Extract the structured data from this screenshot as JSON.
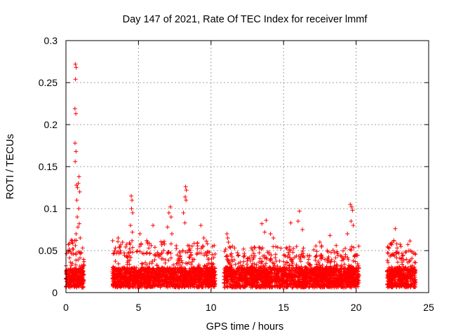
{
  "chart_data": {
    "type": "scatter",
    "title": "Day 147 of 2021, Rate Of TEC Index for receiver lmmf",
    "xlabel": "GPS time / hours",
    "ylabel": "ROTI / TECUs",
    "xlim": [
      0,
      25
    ],
    "ylim": [
      0,
      0.3
    ],
    "xticks": [
      0,
      5,
      10,
      15,
      20,
      25
    ],
    "xtick_labels": [
      "0",
      "5",
      "10",
      "15",
      "20",
      "25"
    ],
    "yticks": [
      0,
      0.05,
      0.1,
      0.15,
      0.2,
      0.25,
      0.3
    ],
    "ytick_labels": [
      "0",
      "0.05",
      "0.1",
      "0.15",
      "0.2",
      "0.25",
      "0.3"
    ],
    "grid": true,
    "marker": "+",
    "series": [
      {
        "name": "ROTI",
        "color": "#ff0000",
        "segments": [
          {
            "x_start": 0.0,
            "x_end": 1.25,
            "typical_max": 0.05,
            "dense_max": 0.03
          },
          {
            "x_start": 3.2,
            "x_end": 10.3,
            "typical_max": 0.05,
            "dense_max": 0.03
          },
          {
            "x_start": 10.9,
            "x_end": 20.2,
            "typical_max": 0.045,
            "dense_max": 0.03
          },
          {
            "x_start": 22.1,
            "x_end": 24.1,
            "typical_max": 0.05,
            "dense_max": 0.03
          }
        ],
        "peaks": [
          {
            "x": 0.65,
            "y": 0.272
          },
          {
            "x": 0.7,
            "y": 0.268
          },
          {
            "x": 0.66,
            "y": 0.254
          },
          {
            "x": 0.62,
            "y": 0.219
          },
          {
            "x": 0.68,
            "y": 0.213
          },
          {
            "x": 0.63,
            "y": 0.178
          },
          {
            "x": 0.69,
            "y": 0.168
          },
          {
            "x": 0.64,
            "y": 0.156
          },
          {
            "x": 0.9,
            "y": 0.138
          },
          {
            "x": 0.85,
            "y": 0.13
          },
          {
            "x": 0.72,
            "y": 0.128
          },
          {
            "x": 0.8,
            "y": 0.125
          },
          {
            "x": 0.95,
            "y": 0.12
          },
          {
            "x": 0.75,
            "y": 0.11
          },
          {
            "x": 0.88,
            "y": 0.1
          },
          {
            "x": 0.78,
            "y": 0.09
          },
          {
            "x": 0.92,
            "y": 0.082
          },
          {
            "x": 0.82,
            "y": 0.078
          },
          {
            "x": 0.7,
            "y": 0.07
          },
          {
            "x": 0.98,
            "y": 0.065
          },
          {
            "x": 4.5,
            "y": 0.115
          },
          {
            "x": 4.55,
            "y": 0.11
          },
          {
            "x": 4.52,
            "y": 0.1
          },
          {
            "x": 4.6,
            "y": 0.095
          },
          {
            "x": 4.45,
            "y": 0.08
          },
          {
            "x": 4.58,
            "y": 0.072
          },
          {
            "x": 3.6,
            "y": 0.065
          },
          {
            "x": 3.9,
            "y": 0.06
          },
          {
            "x": 5.1,
            "y": 0.07
          },
          {
            "x": 6.0,
            "y": 0.08
          },
          {
            "x": 7.2,
            "y": 0.102
          },
          {
            "x": 7.1,
            "y": 0.095
          },
          {
            "x": 7.25,
            "y": 0.09
          },
          {
            "x": 7.0,
            "y": 0.078
          },
          {
            "x": 7.3,
            "y": 0.07
          },
          {
            "x": 8.25,
            "y": 0.126
          },
          {
            "x": 8.3,
            "y": 0.122
          },
          {
            "x": 8.22,
            "y": 0.114
          },
          {
            "x": 8.28,
            "y": 0.11
          },
          {
            "x": 8.1,
            "y": 0.095
          },
          {
            "x": 8.2,
            "y": 0.083
          },
          {
            "x": 9.3,
            "y": 0.08
          },
          {
            "x": 9.5,
            "y": 0.065
          },
          {
            "x": 10.1,
            "y": 0.055
          },
          {
            "x": 11.1,
            "y": 0.07
          },
          {
            "x": 11.15,
            "y": 0.065
          },
          {
            "x": 11.2,
            "y": 0.06
          },
          {
            "x": 13.5,
            "y": 0.082
          },
          {
            "x": 13.8,
            "y": 0.086
          },
          {
            "x": 13.7,
            "y": 0.072
          },
          {
            "x": 14.1,
            "y": 0.07
          },
          {
            "x": 14.3,
            "y": 0.065
          },
          {
            "x": 15.5,
            "y": 0.083
          },
          {
            "x": 16.1,
            "y": 0.097
          },
          {
            "x": 16.0,
            "y": 0.085
          },
          {
            "x": 16.3,
            "y": 0.075
          },
          {
            "x": 17.5,
            "y": 0.06
          },
          {
            "x": 18.2,
            "y": 0.068
          },
          {
            "x": 19.6,
            "y": 0.105
          },
          {
            "x": 19.7,
            "y": 0.102
          },
          {
            "x": 19.75,
            "y": 0.098
          },
          {
            "x": 19.65,
            "y": 0.085
          },
          {
            "x": 19.8,
            "y": 0.08
          },
          {
            "x": 19.4,
            "y": 0.07
          },
          {
            "x": 22.7,
            "y": 0.076
          },
          {
            "x": 22.6,
            "y": 0.062
          },
          {
            "x": 22.8,
            "y": 0.058
          }
        ]
      }
    ]
  }
}
